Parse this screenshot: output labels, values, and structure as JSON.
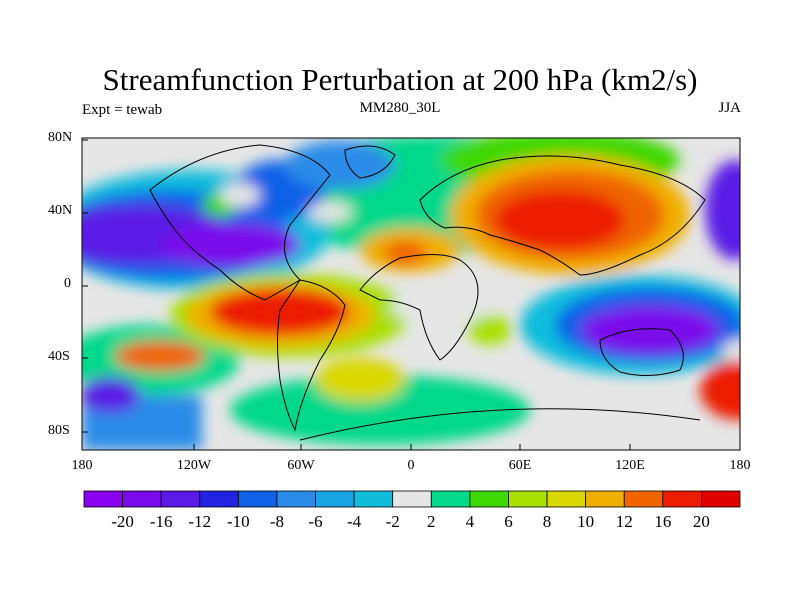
{
  "title": "Streamfunction Perturbation at 200 hPa (km2/s)",
  "left_string": "Expt = tewab",
  "center_string": "MM280_30L",
  "right_string": "JJA",
  "y_ticks": [
    "80N",
    "40N",
    "0",
    "40S",
    "80S"
  ],
  "x_ticks": [
    "180",
    "120W",
    "60W",
    "0",
    "60E",
    "120E",
    "180"
  ],
  "colorbar": {
    "labels": [
      "-20",
      "-16",
      "-12",
      "-10",
      "-8",
      "-6",
      "-4",
      "-2",
      "2",
      "4",
      "6",
      "8",
      "10",
      "12",
      "16",
      "20"
    ],
    "colors": [
      "#8a00f0",
      "#7a0aec",
      "#5a1ae6",
      "#2222e0",
      "#1060e8",
      "#2a8ce8",
      "#18a4e2",
      "#10bedc",
      "#e6e6e6",
      "#00d88c",
      "#3cd800",
      "#a8e000",
      "#d8d800",
      "#f0b000",
      "#f06400",
      "#ec1c00",
      "#e00000"
    ]
  }
}
